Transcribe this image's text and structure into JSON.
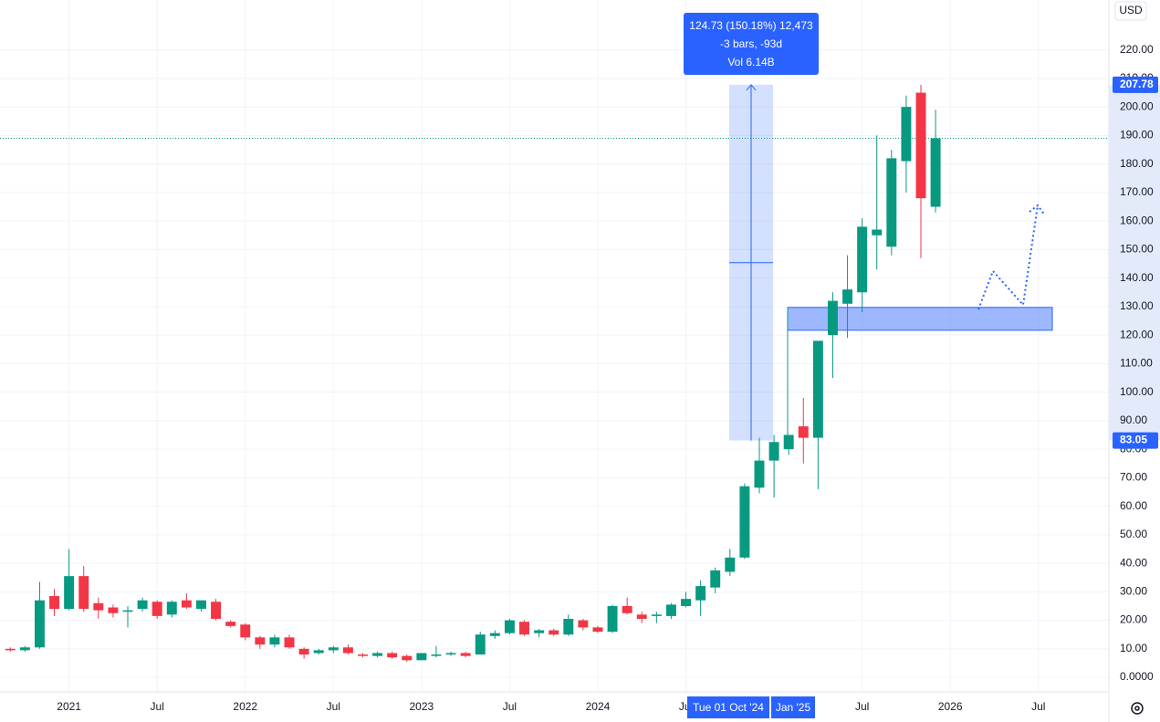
{
  "chart_data": {
    "type": "candlestick",
    "currency": "USD",
    "up_color": "#089981",
    "down_color": "#f23645",
    "open": [
      10,
      9.5,
      10.5,
      28.5,
      24,
      35.5,
      26,
      24.5,
      23,
      24,
      26.5,
      22,
      27,
      24,
      26.5,
      19.5,
      18.5,
      14,
      11.5,
      14,
      10,
      8.5,
      9.5,
      10.5,
      8,
      7.5,
      8.5,
      7.5,
      6,
      7.5,
      8,
      8.5,
      8,
      14.5,
      15.5,
      19.5,
      15.5,
      16.5,
      15,
      20,
      17.5,
      16,
      25,
      22,
      21.5,
      21.5,
      25,
      27,
      31.5,
      37,
      42,
      66.5,
      76,
      80,
      88,
      84,
      120,
      131,
      135,
      155,
      151,
      181,
      205,
      165
    ],
    "high": [
      10.5,
      11,
      33.5,
      31,
      45,
      39,
      28,
      25.5,
      25,
      28,
      27,
      27,
      29.5,
      27,
      27.5,
      20,
      19,
      14.5,
      15,
      15,
      10.5,
      10,
      11,
      11.5,
      8.5,
      9,
      9,
      8,
      8.5,
      11,
      9,
      9,
      16,
      16.5,
      20.5,
      20,
      17,
      17,
      22,
      20.5,
      18,
      25.5,
      28,
      23,
      23,
      26,
      30,
      34,
      38.5,
      45,
      68,
      84,
      85,
      85,
      98,
      118,
      135,
      148,
      161,
      190,
      185,
      204,
      207.78,
      199
    ],
    "low": [
      9,
      9,
      10,
      21.5,
      23.5,
      23,
      20.5,
      21,
      17.5,
      23,
      20.5,
      21,
      24,
      23,
      20,
      17.5,
      13,
      10,
      10.5,
      10,
      6.5,
      8,
      8.5,
      8,
      7,
      7,
      6.5,
      5.5,
      6,
      7,
      7.5,
      7,
      8,
      13.5,
      15,
      14.5,
      14,
      14.5,
      14.5,
      16.5,
      15.5,
      15.5,
      22,
      19,
      19,
      20.5,
      24.5,
      21.5,
      29.5,
      35.5,
      41.5,
      64.5,
      63,
      78,
      75,
      66,
      105,
      119,
      128,
      143,
      148,
      170,
      147,
      163
    ],
    "close": [
      9.5,
      10.5,
      27,
      24,
      35.5,
      24,
      23.5,
      22.5,
      23.5,
      27,
      21.5,
      26.5,
      24.5,
      27,
      20.5,
      18,
      14,
      11.5,
      14,
      10.5,
      8,
      9.5,
      10.5,
      8.5,
      7.5,
      8.5,
      7,
      6,
      8.5,
      8,
      8.5,
      7.5,
      15,
      15.5,
      20,
      15,
      16.5,
      15,
      20.5,
      17.5,
      16,
      25,
      22.5,
      20.5,
      22,
      25.5,
      27.5,
      32,
      37.5,
      42,
      67,
      76,
      82.5,
      85,
      84,
      118,
      132,
      136,
      158,
      157,
      182,
      200,
      168,
      189
    ],
    "xlim": [
      -0.7,
      74.8
    ],
    "xticks": [
      {
        "value": 4,
        "label": "2021"
      },
      {
        "value": 10,
        "label": "Jul"
      },
      {
        "value": 16,
        "label": "2022"
      },
      {
        "value": 22,
        "label": "Jul"
      },
      {
        "value": 28,
        "label": "2023"
      },
      {
        "value": 34,
        "label": "Jul"
      },
      {
        "value": 40,
        "label": "2024"
      },
      {
        "value": 46,
        "label": "Jul"
      },
      {
        "value": 58,
        "label": "Jul"
      },
      {
        "value": 64,
        "label": "2026"
      },
      {
        "value": 70,
        "label": "Jul"
      }
    ],
    "ylim": [
      -5.1,
      237.5
    ],
    "yticks": [
      {
        "value": 0,
        "label": "0.0000"
      },
      {
        "value": 10,
        "label": "10.00"
      },
      {
        "value": 20,
        "label": "20.00"
      },
      {
        "value": 30,
        "label": "30.00"
      },
      {
        "value": 40,
        "label": "40.00"
      },
      {
        "value": 50,
        "label": "50.00"
      },
      {
        "value": 60,
        "label": "60.00"
      },
      {
        "value": 70,
        "label": "70.00"
      },
      {
        "value": 80,
        "label": "80.00"
      },
      {
        "value": 90,
        "label": "90.00"
      },
      {
        "value": 100,
        "label": "100.00"
      },
      {
        "value": 110,
        "label": "110.00"
      },
      {
        "value": 120,
        "label": "120.00"
      },
      {
        "value": 130,
        "label": "130.00"
      },
      {
        "value": 140,
        "label": "140.00"
      },
      {
        "value": 150,
        "label": "150.00"
      },
      {
        "value": 160,
        "label": "160.00"
      },
      {
        "value": 170,
        "label": "170.00"
      },
      {
        "value": 180,
        "label": "180.00"
      },
      {
        "value": 190,
        "label": "190.00"
      },
      {
        "value": 200,
        "label": "200.00"
      },
      {
        "value": 210,
        "label": "210.00"
      },
      {
        "value": 220,
        "label": "220.00"
      }
    ],
    "grid": true,
    "price_line": 189,
    "zone": [
      121.7,
      129.7
    ],
    "measure": {
      "from": {
        "value": 83.05,
        "label": "83.05"
      },
      "to": {
        "value": 207.78,
        "label": "207.78"
      },
      "text": [
        "124.73 (150.18%) 12,473",
        "-3 bars, -93d",
        "Vol 6.14B"
      ]
    },
    "crosshair_labels": [
      "Tue 01 Oct '24",
      "Jan '25"
    ]
  }
}
